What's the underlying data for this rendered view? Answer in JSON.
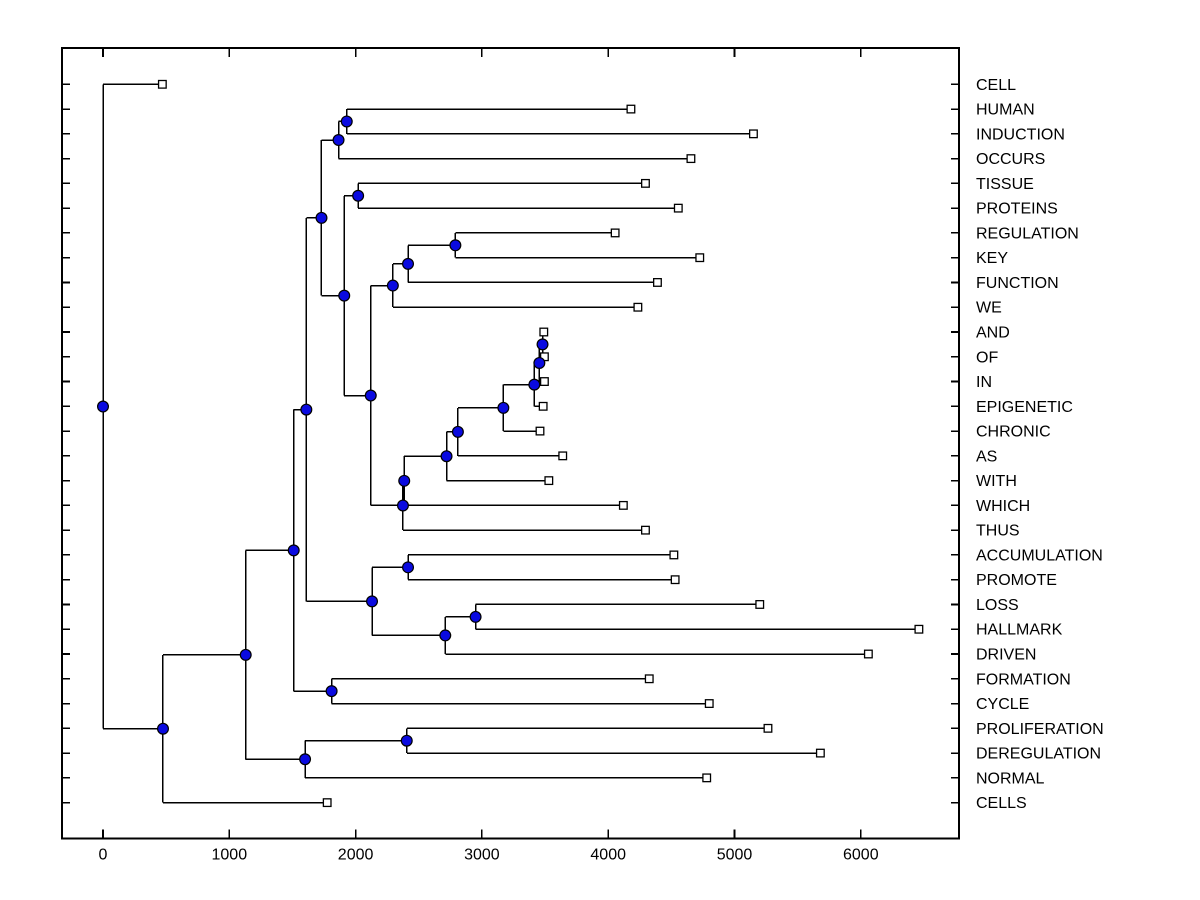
{
  "figure": {
    "title": "",
    "background": "#ffffff"
  },
  "colors": {
    "line": "#000000",
    "box": "#000000",
    "branch_node_fill": "#0a0ae0",
    "branch_node_edge": "#000000",
    "leaf_marker_fill": "#ffffff",
    "leaf_marker_edge": "#000000",
    "text": "#000000"
  },
  "chart_data": {
    "type": "dendrogram",
    "orientation": "left-to-right",
    "title": "",
    "xlabel": "",
    "ylabel": "",
    "grid": false,
    "x_axis": {
      "ticks": [
        0,
        1000,
        2000,
        3000,
        4000,
        5000,
        6000
      ],
      "tick_labels": [
        "0",
        "1000",
        "2000",
        "3000",
        "4000",
        "5000",
        "6000"
      ],
      "range_shown": [
        -330,
        6780
      ]
    },
    "leaves": [
      {
        "label": "CELL",
        "value": 470
      },
      {
        "label": "HUMAN",
        "value": 4180
      },
      {
        "label": "INDUCTION",
        "value": 5150
      },
      {
        "label": "OCCURS",
        "value": 4655
      },
      {
        "label": "TISSUE",
        "value": 4295
      },
      {
        "label": "PROTEINS",
        "value": 4555
      },
      {
        "label": "REGULATION",
        "value": 4055
      },
      {
        "label": "KEY",
        "value": 4725
      },
      {
        "label": "FUNCTION",
        "value": 4390
      },
      {
        "label": "WE",
        "value": 4235
      },
      {
        "label": "AND",
        "value": 3490
      },
      {
        "label": "OF",
        "value": 3495
      },
      {
        "label": "IN",
        "value": 3495
      },
      {
        "label": "EPIGENETIC",
        "value": 3485
      },
      {
        "label": "CHRONIC",
        "value": 3460
      },
      {
        "label": "AS",
        "value": 3640
      },
      {
        "label": "WITH",
        "value": 3530
      },
      {
        "label": "WHICH",
        "value": 4120
      },
      {
        "label": "THUS",
        "value": 4295
      },
      {
        "label": "ACCUMULATION",
        "value": 4520
      },
      {
        "label": "PROMOTE",
        "value": 4530
      },
      {
        "label": "LOSS",
        "value": 5200
      },
      {
        "label": "HALLMARK",
        "value": 6460
      },
      {
        "label": "DRIVEN",
        "value": 6060
      },
      {
        "label": "FORMATION",
        "value": 4325
      },
      {
        "label": "CYCLE",
        "value": 4800
      },
      {
        "label": "PROLIFERATION",
        "value": 5265
      },
      {
        "label": "DEREGULATION",
        "value": 5680
      },
      {
        "label": "NORMAL",
        "value": 4780
      },
      {
        "label": "CELLS",
        "value": 1775
      }
    ],
    "tree": {
      "v": 0,
      "c": [
        {
          "leaf": 0
        },
        {
          "v": 475,
          "c": [
            {
              "v": 1130,
              "c": [
                {
                  "v": 1510,
                  "c": [
                    {
                      "v": 1610,
                      "c": [
                        {
                          "v": 1730,
                          "c": [
                            {
                              "v": 1865,
                              "c": [
                                {
                                  "v": 1930,
                                  "c": [
                                    {
                                      "leaf": 1
                                    },
                                    {
                                      "leaf": 2
                                    }
                                  ]
                                },
                                {
                                  "leaf": 3
                                }
                              ]
                            },
                            {
                              "v": 1910,
                              "c": [
                                {
                                  "v": 2020,
                                  "c": [
                                    {
                                      "leaf": 4
                                    },
                                    {
                                      "leaf": 5
                                    }
                                  ]
                                },
                                {
                                  "v": 2120,
                                  "c": [
                                    {
                                      "v": 2295,
                                      "c": [
                                        {
                                          "v": 2415,
                                          "c": [
                                            {
                                              "v": 2790,
                                              "c": [
                                                {
                                                  "leaf": 6
                                                },
                                                {
                                                  "leaf": 7
                                                }
                                              ]
                                            },
                                            {
                                              "leaf": 8
                                            }
                                          ]
                                        },
                                        {
                                          "leaf": 9
                                        }
                                      ]
                                    },
                                    {
                                      "v": 2375,
                                      "c": [
                                        {
                                          "v": 2385,
                                          "c": [
                                            {
                                              "v": 2720,
                                              "c": [
                                                {
                                                  "v": 2810,
                                                  "c": [
                                                    {
                                                      "v": 3170,
                                                      "c": [
                                                        {
                                                          "v": 3415,
                                                          "c": [
                                                            {
                                                              "v": 3455,
                                                              "c": [
                                                                {
                                                                  "v": 3480,
                                                                  "c": [
                                                                    {
                                                                      "leaf": 10
                                                                    },
                                                                    {
                                                                      "leaf": 11
                                                                    }
                                                                  ]
                                                                },
                                                                {
                                                                  "leaf": 12
                                                                }
                                                              ]
                                                            },
                                                            {
                                                              "leaf": 13
                                                            }
                                                          ]
                                                        },
                                                        {
                                                          "leaf": 14
                                                        }
                                                      ]
                                                    },
                                                    {
                                                      "leaf": 15
                                                    }
                                                  ]
                                                },
                                                {
                                                  "leaf": 16
                                                }
                                              ]
                                            },
                                            {
                                              "leaf": 17
                                            }
                                          ]
                                        },
                                        {
                                          "leaf": 18
                                        }
                                      ]
                                    }
                                  ]
                                }
                              ]
                            }
                          ]
                        },
                        {
                          "v": 2130,
                          "c": [
                            {
                              "v": 2415,
                              "c": [
                                {
                                  "leaf": 19
                                },
                                {
                                  "leaf": 20
                                }
                              ]
                            },
                            {
                              "v": 2710,
                              "c": [
                                {
                                  "v": 2950,
                                  "c": [
                                    {
                                      "leaf": 21
                                    },
                                    {
                                      "leaf": 22
                                    }
                                  ]
                                },
                                {
                                  "leaf": 23
                                }
                              ]
                            }
                          ]
                        }
                      ]
                    },
                    {
                      "v": 1810,
                      "c": [
                        {
                          "leaf": 24
                        },
                        {
                          "leaf": 25
                        }
                      ]
                    }
                  ]
                },
                {
                  "v": 1600,
                  "c": [
                    {
                      "v": 2405,
                      "c": [
                        {
                          "leaf": 26
                        },
                        {
                          "leaf": 27
                        }
                      ]
                    },
                    {
                      "leaf": 28
                    }
                  ]
                }
              ]
            },
            {
              "leaf": 29
            }
          ]
        }
      ]
    }
  }
}
